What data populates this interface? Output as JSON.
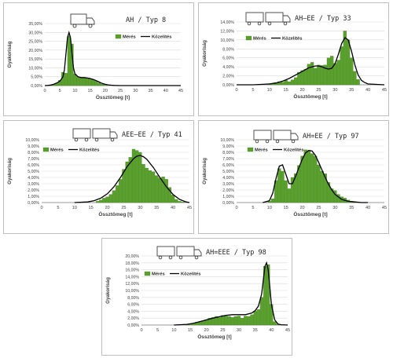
{
  "colors": {
    "bar": "#5aa02c",
    "bar_edge": "#3f7f1e",
    "line": "#000000",
    "grid": "#d9d9d9",
    "axis": "#7f7f7f"
  },
  "chart_data": [
    {
      "type": "bar",
      "title": "AH / Typ 8",
      "icon": "truck-icon",
      "xlabel": "Össztömeg [t]",
      "ylabel": "Gyakoriság",
      "xlim": [
        0,
        45
      ],
      "ylim": [
        0,
        0.35
      ],
      "xticks": [
        "0",
        "5",
        "10",
        "15",
        "20",
        "25",
        "30",
        "35",
        "40",
        "45"
      ],
      "yticks": [
        "0,00%",
        "5,00%",
        "10,00%",
        "15,00%",
        "20,00%",
        "25,00%",
        "30,00%",
        "35,00%"
      ],
      "legend": "top-right",
      "series": [
        {
          "name": "Mérés",
          "kind": "bar",
          "x": [
            1,
            2,
            3,
            4,
            5,
            6,
            7,
            8,
            9,
            10,
            11,
            12,
            13,
            14,
            15,
            16,
            17,
            18,
            19,
            20
          ],
          "values": [
            0.002,
            0.004,
            0.008,
            0.015,
            0.03,
            0.075,
            0.07,
            0.28,
            0.235,
            0.065,
            0.05,
            0.045,
            0.045,
            0.042,
            0.038,
            0.035,
            0.025,
            0.015,
            0.008,
            0.005
          ]
        },
        {
          "name": "Közelítés",
          "kind": "line",
          "x": [
            0,
            1,
            2,
            3,
            4,
            5,
            6,
            6.5,
            7,
            7.5,
            8,
            8.5,
            9,
            9.5,
            10,
            11,
            12,
            13,
            14,
            15,
            16,
            17,
            18,
            19,
            20,
            21,
            22,
            23,
            25,
            30,
            35,
            40,
            45
          ],
          "values": [
            0,
            0.001,
            0.003,
            0.008,
            0.015,
            0.025,
            0.05,
            0.09,
            0.18,
            0.27,
            0.3,
            0.27,
            0.18,
            0.1,
            0.065,
            0.05,
            0.045,
            0.045,
            0.043,
            0.04,
            0.035,
            0.028,
            0.02,
            0.012,
            0.007,
            0.004,
            0.002,
            0.001,
            0,
            0,
            0,
            0,
            0
          ]
        }
      ]
    },
    {
      "type": "bar",
      "title": "AH–EE / Typ 33",
      "icon": "truck-trailer-icon",
      "xlabel": "Össztömeg [t]",
      "ylabel": "Gyakoriság",
      "xlim": [
        0,
        45
      ],
      "ylim": [
        0,
        0.14
      ],
      "xticks": [
        "0",
        "5",
        "10",
        "15",
        "20",
        "25",
        "30",
        "35",
        "40",
        "45"
      ],
      "yticks": [
        "0,00%",
        "2,00%",
        "4,00%",
        "6,00%",
        "8,00%",
        "10,00%",
        "12,00%",
        "14,00%"
      ],
      "legend": "top-right",
      "series": [
        {
          "name": "Mérés",
          "kind": "bar",
          "x": [
            10,
            11,
            12,
            13,
            14,
            15,
            16,
            17,
            18,
            19,
            20,
            21,
            22,
            23,
            24,
            25,
            26,
            27,
            28,
            29,
            30,
            31,
            32,
            33,
            34,
            35,
            36,
            37
          ],
          "values": [
            0.002,
            0.003,
            0.005,
            0.007,
            0.006,
            0.01,
            0.007,
            0.011,
            0.016,
            0.028,
            0.032,
            0.035,
            0.046,
            0.05,
            0.037,
            0.044,
            0.043,
            0.044,
            0.06,
            0.064,
            0.048,
            0.055,
            0.085,
            0.12,
            0.1,
            0.06,
            0.03,
            0.012
          ]
        },
        {
          "name": "Közelítés",
          "kind": "line",
          "x": [
            0,
            5,
            8,
            10,
            12,
            14,
            16,
            18,
            20,
            22,
            24,
            25,
            26,
            27,
            28,
            29,
            30,
            31,
            32,
            33,
            34,
            35,
            36,
            37,
            38,
            39,
            40,
            42,
            45
          ],
          "values": [
            0,
            0,
            0.001,
            0.002,
            0.004,
            0.008,
            0.014,
            0.022,
            0.03,
            0.038,
            0.042,
            0.042,
            0.04,
            0.037,
            0.035,
            0.037,
            0.047,
            0.068,
            0.092,
            0.105,
            0.1,
            0.075,
            0.045,
            0.022,
            0.01,
            0.005,
            0.002,
            0.001,
            0
          ]
        }
      ]
    },
    {
      "type": "bar",
      "title": "AEE–EE / Typ 41",
      "icon": "truck-trailer-icon",
      "xlabel": "Össztömeg [t]",
      "ylabel": "Gyakoriság",
      "xlim": [
        0,
        45
      ],
      "ylim": [
        0,
        0.1
      ],
      "xticks": [
        "0",
        "5",
        "10",
        "15",
        "20",
        "25",
        "30",
        "35",
        "40",
        "45"
      ],
      "yticks": [
        "0,00%",
        "1,00%",
        "2,00%",
        "3,00%",
        "4,00%",
        "5,00%",
        "6,00%",
        "7,00%",
        "8,00%",
        "9,00%",
        "10,00%"
      ],
      "legend": "top-left",
      "series": [
        {
          "name": "Mérés",
          "kind": "bar",
          "x": [
            17,
            18,
            19,
            20,
            21,
            22,
            23,
            24,
            25,
            26,
            27,
            28,
            29,
            30,
            31,
            32,
            33,
            34,
            35,
            36,
            37,
            38,
            39,
            40,
            41,
            42,
            43
          ],
          "values": [
            0.002,
            0.004,
            0.007,
            0.009,
            0.013,
            0.019,
            0.027,
            0.037,
            0.053,
            0.065,
            0.072,
            0.085,
            0.083,
            0.08,
            0.061,
            0.055,
            0.051,
            0.049,
            0.043,
            0.039,
            0.041,
            0.037,
            0.024,
            0.012,
            0.005,
            0.002,
            0.001
          ]
        },
        {
          "name": "Közelítés",
          "kind": "line",
          "x": [
            10,
            14,
            16,
            18,
            20,
            22,
            24,
            26,
            28,
            29,
            30,
            31,
            32,
            34,
            36,
            38,
            40,
            42,
            44,
            45
          ],
          "values": [
            0,
            0.001,
            0.003,
            0.007,
            0.014,
            0.025,
            0.04,
            0.057,
            0.07,
            0.074,
            0.075,
            0.073,
            0.069,
            0.056,
            0.04,
            0.025,
            0.013,
            0.005,
            0.001,
            0
          ]
        }
      ]
    },
    {
      "type": "bar",
      "title": "AH=EE / Typ 97",
      "icon": "truck-trailer-icon",
      "xlabel": "Össztömeg [t]",
      "ylabel": "Gyakoriság",
      "xlim": [
        0,
        45
      ],
      "ylim": [
        0,
        0.1
      ],
      "xticks": [
        "0",
        "5",
        "10",
        "15",
        "20",
        "25",
        "30",
        "35",
        "40",
        "45"
      ],
      "yticks": [
        "0,00%",
        "1,00%",
        "2,00%",
        "3,00%",
        "4,00%",
        "5,00%",
        "6,00%",
        "7,00%",
        "8,00%",
        "9,00%",
        "10,00%"
      ],
      "legend": "top-left",
      "series": [
        {
          "name": "Mérés",
          "kind": "bar",
          "x": [
            10,
            11,
            12,
            13,
            14,
            15,
            16,
            17,
            18,
            19,
            20,
            21,
            22,
            23,
            24,
            25,
            26,
            27,
            28,
            29,
            30,
            31,
            32,
            33,
            34,
            35,
            36
          ],
          "values": [
            0.002,
            0.006,
            0.035,
            0.054,
            0.05,
            0.035,
            0.022,
            0.04,
            0.046,
            0.059,
            0.074,
            0.084,
            0.083,
            0.078,
            0.074,
            0.06,
            0.05,
            0.046,
            0.032,
            0.022,
            0.019,
            0.013,
            0.009,
            0.007,
            0.004,
            0.002,
            0.001
          ]
        },
        {
          "name": "Közelítés",
          "kind": "line",
          "x": [
            8,
            10,
            11,
            12,
            13,
            14,
            15,
            16,
            17,
            18,
            19,
            20,
            21,
            22,
            23,
            24,
            25,
            26,
            27,
            28,
            29,
            30,
            32,
            34,
            36,
            38,
            40
          ],
          "values": [
            0,
            0.003,
            0.015,
            0.038,
            0.058,
            0.06,
            0.045,
            0.03,
            0.03,
            0.042,
            0.056,
            0.069,
            0.079,
            0.083,
            0.082,
            0.075,
            0.064,
            0.052,
            0.04,
            0.029,
            0.02,
            0.013,
            0.005,
            0.002,
            0.001,
            0,
            0
          ]
        }
      ]
    },
    {
      "type": "bar",
      "title": "AH=EEE / Typ 98",
      "icon": "truck-trailer-icon",
      "xlabel": "Össztömeg [t]",
      "ylabel": "Gyakoriság",
      "xlim": [
        0,
        45
      ],
      "ylim": [
        0,
        0.2
      ],
      "xticks": [
        "0",
        "5",
        "10",
        "15",
        "20",
        "25",
        "30",
        "35",
        "40",
        "45"
      ],
      "yticks": [
        "0,00%",
        "2,00%",
        "4,00%",
        "6,00%",
        "8,00%",
        "10,00%",
        "12,00%",
        "14,00%",
        "16,00%",
        "18,00%",
        "20,00%"
      ],
      "legend": "top-left",
      "series": [
        {
          "name": "Mérés",
          "kind": "bar",
          "x": [
            14,
            15,
            16,
            17,
            18,
            19,
            20,
            21,
            22,
            23,
            24,
            25,
            26,
            27,
            28,
            29,
            30,
            31,
            32,
            33,
            34,
            35,
            36,
            37,
            38,
            39,
            40,
            41,
            42
          ],
          "values": [
            0.002,
            0.003,
            0.005,
            0.008,
            0.01,
            0.012,
            0.015,
            0.02,
            0.022,
            0.025,
            0.022,
            0.028,
            0.026,
            0.025,
            0.022,
            0.025,
            0.026,
            0.02,
            0.026,
            0.025,
            0.03,
            0.04,
            0.045,
            0.08,
            0.17,
            0.175,
            0.06,
            0.01,
            0.003
          ]
        },
        {
          "name": "Közelítés",
          "kind": "line",
          "x": [
            10,
            14,
            16,
            18,
            20,
            22,
            24,
            26,
            28,
            30,
            32,
            34,
            35,
            36,
            37,
            37.5,
            38,
            38.5,
            39,
            39.5,
            40,
            41,
            42,
            43,
            45
          ],
          "values": [
            0,
            0.002,
            0.005,
            0.01,
            0.015,
            0.02,
            0.024,
            0.028,
            0.03,
            0.03,
            0.03,
            0.035,
            0.042,
            0.055,
            0.09,
            0.13,
            0.17,
            0.18,
            0.16,
            0.11,
            0.06,
            0.015,
            0.003,
            0.001,
            0
          ]
        }
      ]
    }
  ]
}
